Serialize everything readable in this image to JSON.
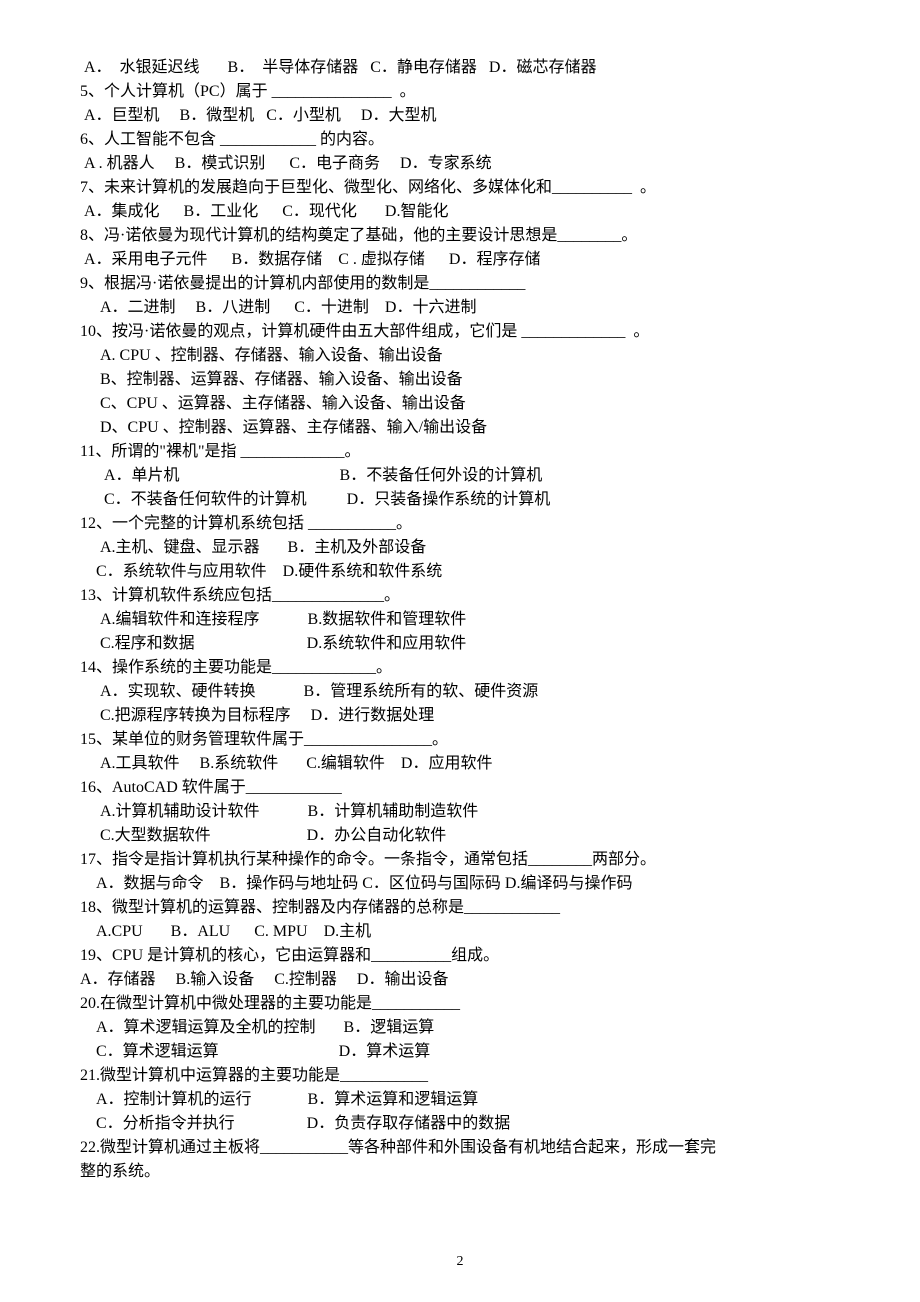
{
  "page": {
    "number": "2",
    "font_size_pt": 12,
    "text_color": "#000000",
    "background_color": "#ffffff",
    "lines": [
      " A．  水银延迟线       B．  半导体存储器   C．静电存储器   D．磁芯存储器",
      "5、个人计算机（PC）属于 _______________  。",
      " A．巨型机     B．微型机   C．小型机     D．大型机",
      "6、人工智能不包含 ____________ 的内容。",
      " A . 机器人     B．模式识别      C．电子商务     D．专家系统",
      "7、未来计算机的发展趋向于巨型化、微型化、网络化、多媒体化和__________  。",
      " A．集成化      B．工业化      C．现代化       D.智能化",
      "8、冯·诺依曼为现代计算机的结构奠定了基础，他的主要设计思想是________。",
      " A．采用电子元件      B．数据存储    C . 虚拟存储      D．程序存储",
      "9、根据冯·诺依曼提出的计算机内部使用的数制是____________",
      "     A．二进制     B．八进制      C．十进制    D．十六进制",
      "10、按冯·诺依曼的观点，计算机硬件由五大部件组成，它们是 _____________  。",
      "     A. CPU 、控制器、存储器、输入设备、输出设备",
      "     B、控制器、运算器、存储器、输入设备、输出设备",
      "     C、CPU 、运算器、主存储器、输入设备、输出设备",
      "     D、CPU 、控制器、运算器、主存储器、输入/输出设备",
      "11、所谓的\"裸机\"是指 _____________。",
      "      A．单片机                                        B．不装备任何外设的计算机",
      "      C．不装备任何软件的计算机          D．只装备操作系统的计算机",
      "12、一个完整的计算机系统包括 ___________。",
      "     A.主机、键盘、显示器       B．主机及外部设备",
      "    C．系统软件与应用软件    D.硬件系统和软件系统",
      "13、计算机软件系统应包括______________。",
      "     A.编辑软件和连接程序            B.数据软件和管理软件",
      "     C.程序和数据                            D.系统软件和应用软件",
      "14、操作系统的主要功能是_____________。",
      "     A．实现软、硬件转换            B．管理系统所有的软、硬件资源",
      "     C.把源程序转换为目标程序     D．进行数据处理",
      "15、某单位的财务管理软件属于________________。",
      "     A.工具软件     B.系统软件       C.编辑软件    D．应用软件",
      "16、AutoCAD 软件属于____________",
      "     A.计算机辅助设计软件            B．计算机辅助制造软件",
      "     C.大型数据软件                        D．办公自动化软件",
      "17、指令是指计算机执行某种操作的命令。一条指令，通常包括________两部分。",
      "    A．数据与命令    B．操作码与地址码 C．区位码与国际码 D.编译码与操作码",
      "18、微型计算机的运算器、控制器及内存储器的总称是____________",
      "    A.CPU       B．ALU      C. MPU    D.主机",
      "19、CPU 是计算机的核心，它由运算器和__________组成。",
      "A．存储器     B.输入设备     C.控制器     D．输出设备",
      "20.在微型计算机中微处理器的主要功能是___________",
      "    A．算术逻辑运算及全机的控制       B．逻辑运算",
      "    C．算术逻辑运算                              D．算术运算",
      "21.微型计算机中运算器的主要功能是___________",
      "    A．控制计算机的运行              B．算术运算和逻辑运算",
      "    C．分析指令并执行                  D．负责存取存储器中的数据",
      "22.微型计算机通过主板将___________等各种部件和外围设备有机地结合起来，形成一套完",
      "整的系统。"
    ]
  }
}
